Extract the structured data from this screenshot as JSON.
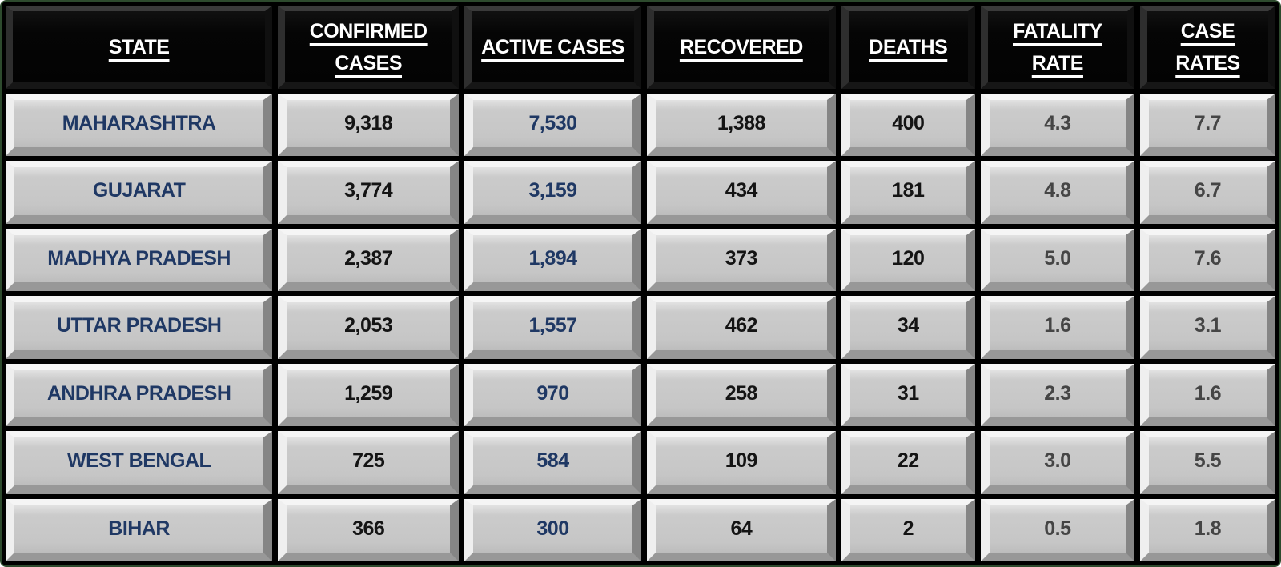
{
  "table": {
    "columns": [
      {
        "key": "state",
        "label": "STATE"
      },
      {
        "key": "confirmed",
        "label": "CONFIRMED CASES"
      },
      {
        "key": "active",
        "label": "ACTIVE CASES"
      },
      {
        "key": "recovered",
        "label": "RECOVERED"
      },
      {
        "key": "deaths",
        "label": "DEATHS"
      },
      {
        "key": "fatality_rate",
        "label": "FATALITY RATE"
      },
      {
        "key": "case_rates",
        "label": "CASE RATES"
      }
    ],
    "rows": [
      {
        "state": "MAHARASHTRA",
        "confirmed": "9,318",
        "active": "7,530",
        "recovered": "1,388",
        "deaths": "400",
        "fatality_rate": "4.3",
        "case_rates": "7.7"
      },
      {
        "state": "GUJARAT",
        "confirmed": "3,774",
        "active": "3,159",
        "recovered": "434",
        "deaths": "181",
        "fatality_rate": "4.8",
        "case_rates": "6.7"
      },
      {
        "state": "MADHYA PRADESH",
        "confirmed": "2,387",
        "active": "1,894",
        "recovered": "373",
        "deaths": "120",
        "fatality_rate": "5.0",
        "case_rates": "7.6"
      },
      {
        "state": "UTTAR PRADESH",
        "confirmed": "2,053",
        "active": "1,557",
        "recovered": "462",
        "deaths": "34",
        "fatality_rate": "1.6",
        "case_rates": "3.1"
      },
      {
        "state": "ANDHRA PRADESH",
        "confirmed": "1,259",
        "active": "970",
        "recovered": "258",
        "deaths": "31",
        "fatality_rate": "2.3",
        "case_rates": "1.6"
      },
      {
        "state": "WEST BENGAL",
        "confirmed": "725",
        "active": "584",
        "recovered": "109",
        "deaths": "22",
        "fatality_rate": "3.0",
        "case_rates": "5.5"
      },
      {
        "state": "BIHAR",
        "confirmed": "366",
        "active": "300",
        "recovered": "64",
        "deaths": "2",
        "fatality_rate": "0.5",
        "case_rates": "1.8"
      }
    ]
  },
  "colors": {
    "background": "#000000",
    "frame_border": "#2d4a2d",
    "cell_fill": "#c9c9c9",
    "header_fill": "#060606",
    "header_text": "#ffffff",
    "state_text": "#1f3864",
    "number_text": "#141414",
    "rate_text": "#454545"
  },
  "chart_data": {
    "type": "table",
    "title": "",
    "columns": [
      "STATE",
      "CONFIRMED CASES",
      "ACTIVE CASES",
      "RECOVERED",
      "DEATHS",
      "FATALITY RATE",
      "CASE RATES"
    ],
    "rows": [
      [
        "MAHARASHTRA",
        9318,
        7530,
        1388,
        400,
        4.3,
        7.7
      ],
      [
        "GUJARAT",
        3774,
        3159,
        434,
        181,
        4.8,
        6.7
      ],
      [
        "MADHYA PRADESH",
        2387,
        1894,
        373,
        120,
        5.0,
        7.6
      ],
      [
        "UTTAR PRADESH",
        2053,
        1557,
        462,
        34,
        1.6,
        3.1
      ],
      [
        "ANDHRA PRADESH",
        1259,
        970,
        258,
        31,
        2.3,
        1.6
      ],
      [
        "WEST BENGAL",
        725,
        584,
        109,
        22,
        3.0,
        5.5
      ],
      [
        "BIHAR",
        366,
        300,
        64,
        2,
        0.5,
        1.8
      ]
    ]
  }
}
